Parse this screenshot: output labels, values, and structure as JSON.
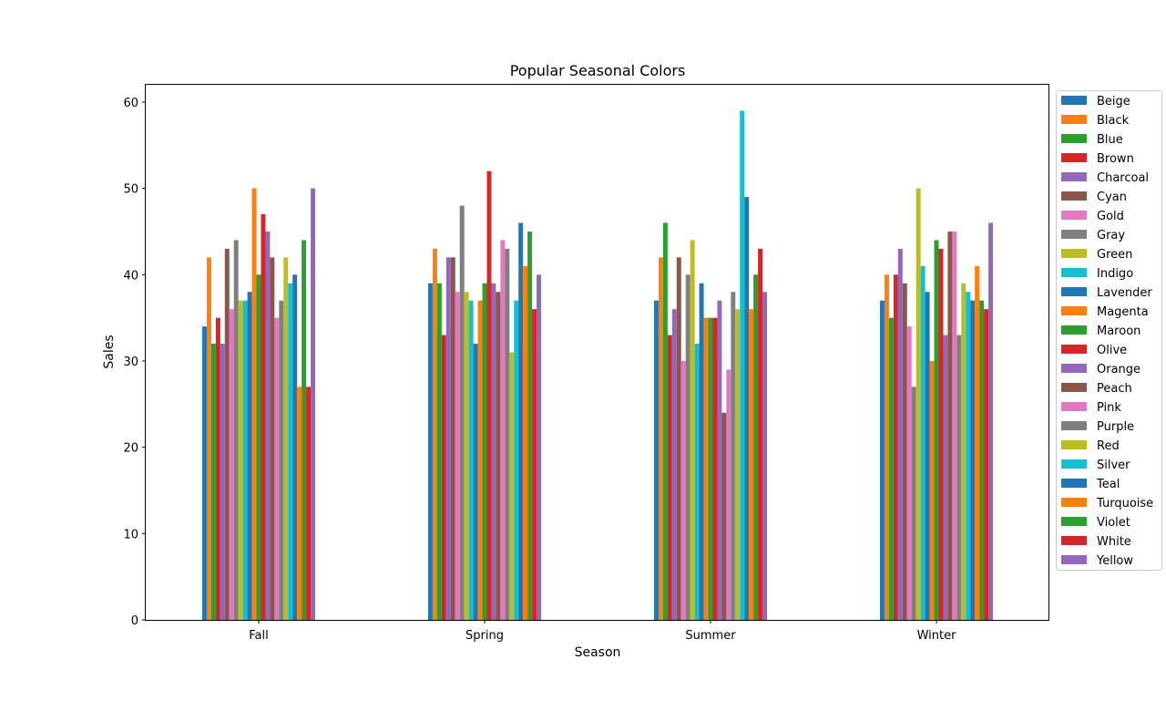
{
  "chart_data": {
    "type": "bar",
    "title": "Popular Seasonal Colors",
    "xlabel": "Season",
    "ylabel": "Sales",
    "categories": [
      "Fall",
      "Spring",
      "Summer",
      "Winter"
    ],
    "ylim": [
      0,
      62
    ],
    "yticks": [
      0,
      10,
      20,
      30,
      40,
      50,
      60
    ],
    "grid": false,
    "legend_position": "outside-right-top",
    "series": [
      {
        "name": "Beige",
        "color": "#1f77b4",
        "values": [
          34,
          39,
          37,
          37
        ]
      },
      {
        "name": "Black",
        "color": "#ff7f0e",
        "values": [
          42,
          43,
          42,
          40
        ]
      },
      {
        "name": "Blue",
        "color": "#2ca02c",
        "values": [
          32,
          39,
          46,
          35
        ]
      },
      {
        "name": "Brown",
        "color": "#d62728",
        "values": [
          35,
          33,
          33,
          40
        ]
      },
      {
        "name": "Charcoal",
        "color": "#9467bd",
        "values": [
          32,
          42,
          36,
          43
        ]
      },
      {
        "name": "Cyan",
        "color": "#8c564b",
        "values": [
          43,
          42,
          42,
          39
        ]
      },
      {
        "name": "Gold",
        "color": "#e377c2",
        "values": [
          36,
          38,
          30,
          34
        ]
      },
      {
        "name": "Gray",
        "color": "#7f7f7f",
        "values": [
          44,
          48,
          40,
          27
        ]
      },
      {
        "name": "Green",
        "color": "#bcbd22",
        "values": [
          37,
          38,
          44,
          50
        ]
      },
      {
        "name": "Indigo",
        "color": "#17becf",
        "values": [
          37,
          37,
          32,
          41
        ]
      },
      {
        "name": "Lavender",
        "color": "#1f77b4",
        "values": [
          38,
          32,
          39,
          38
        ]
      },
      {
        "name": "Magenta",
        "color": "#ff7f0e",
        "values": [
          50,
          37,
          35,
          30
        ]
      },
      {
        "name": "Maroon",
        "color": "#2ca02c",
        "values": [
          40,
          39,
          35,
          44
        ]
      },
      {
        "name": "Olive",
        "color": "#d62728",
        "values": [
          47,
          52,
          35,
          43
        ]
      },
      {
        "name": "Orange",
        "color": "#9467bd",
        "values": [
          45,
          39,
          37,
          33
        ]
      },
      {
        "name": "Peach",
        "color": "#8c564b",
        "values": [
          42,
          38,
          24,
          45
        ]
      },
      {
        "name": "Pink",
        "color": "#e377c2",
        "values": [
          35,
          44,
          29,
          45
        ]
      },
      {
        "name": "Purple",
        "color": "#7f7f7f",
        "values": [
          37,
          43,
          38,
          33
        ]
      },
      {
        "name": "Red",
        "color": "#bcbd22",
        "values": [
          42,
          31,
          36,
          39
        ]
      },
      {
        "name": "Silver",
        "color": "#17becf",
        "values": [
          39,
          37,
          59,
          38
        ]
      },
      {
        "name": "Teal",
        "color": "#1f77b4",
        "values": [
          40,
          46,
          49,
          37
        ]
      },
      {
        "name": "Turquoise",
        "color": "#ff7f0e",
        "values": [
          27,
          41,
          36,
          41
        ]
      },
      {
        "name": "Violet",
        "color": "#2ca02c",
        "values": [
          44,
          45,
          40,
          37
        ]
      },
      {
        "name": "White",
        "color": "#d62728",
        "values": [
          27,
          36,
          43,
          36
        ]
      },
      {
        "name": "Yellow",
        "color": "#9467bd",
        "values": [
          50,
          40,
          38,
          46
        ]
      }
    ]
  }
}
